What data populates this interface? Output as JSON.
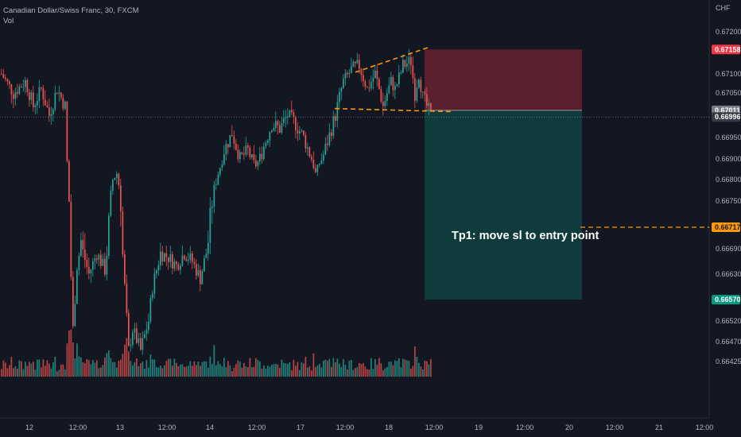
{
  "header": {
    "symbol_line": "Canadian Dollar/Swiss Franc, 30, FXCM",
    "indicator": "Vol"
  },
  "note": "Tp1: move sl to entry point",
  "chart_data": {
    "type": "candlestick",
    "title": "Canadian Dollar/Swiss Franc, 30, FXCM",
    "currency_label": "CHF",
    "y_axis_side": "right",
    "ylim": [
      0.664,
      0.6724
    ],
    "y_ticks": [
      "0.67200",
      "0.67100",
      "0.67050",
      "0.66950",
      "0.66900",
      "0.66800",
      "0.66750",
      "0.66690",
      "0.66630",
      "0.66520",
      "0.66470",
      "0.66425"
    ],
    "x_ticks": [
      "12",
      "12:00",
      "13",
      "12:00",
      "14",
      "12:00",
      "17",
      "12:00",
      "18",
      "12:00",
      "19",
      "12:00",
      "20",
      "12:00",
      "21",
      "12:00"
    ],
    "price_badges": [
      {
        "label": "0.67158",
        "role": "stop-loss",
        "color": "#f23645"
      },
      {
        "label": "0.67011",
        "role": "entry",
        "color": "#787b86"
      },
      {
        "label": "0.66996",
        "role": "last-price",
        "color": "#363a45"
      },
      {
        "label": "0.66717",
        "role": "tp1",
        "color": "#ff9800"
      },
      {
        "label": "0.66570",
        "role": "take-profit",
        "color": "#089981"
      }
    ],
    "colors": {
      "up": "#26a69a",
      "down": "#ef5350",
      "background": "#131722",
      "annotation": "#ff9800"
    },
    "price_path": [
      [
        0,
        0.671
      ],
      [
        3,
        0.6705
      ],
      [
        6,
        0.6708
      ],
      [
        8,
        0.6702
      ],
      [
        10,
        0.6706
      ],
      [
        12,
        0.67
      ],
      [
        14,
        0.6706
      ],
      [
        16,
        0.6702
      ],
      [
        17,
        0.6675
      ],
      [
        18,
        0.665
      ],
      [
        19,
        0.6665
      ],
      [
        20,
        0.667
      ],
      [
        22,
        0.6663
      ],
      [
        24,
        0.6668
      ],
      [
        26,
        0.6664
      ],
      [
        27,
        0.6672
      ],
      [
        28,
        0.668
      ],
      [
        29,
        0.6683
      ],
      [
        30,
        0.6675
      ],
      [
        31,
        0.666
      ],
      [
        32,
        0.6645
      ],
      [
        33,
        0.665
      ],
      [
        35,
        0.6645
      ],
      [
        37,
        0.6652
      ],
      [
        38,
        0.666
      ],
      [
        40,
        0.6668
      ],
      [
        42,
        0.6667
      ],
      [
        44,
        0.6665
      ],
      [
        46,
        0.6668
      ],
      [
        48,
        0.6666
      ],
      [
        50,
        0.6662
      ],
      [
        52,
        0.667
      ],
      [
        54,
        0.668
      ],
      [
        56,
        0.6692
      ],
      [
        58,
        0.6696
      ],
      [
        60,
        0.669
      ],
      [
        62,
        0.6692
      ],
      [
        64,
        0.6687
      ],
      [
        66,
        0.6693
      ],
      [
        68,
        0.6698
      ],
      [
        70,
        0.6697
      ],
      [
        72,
        0.67
      ],
      [
        74,
        0.6698
      ],
      [
        76,
        0.6695
      ],
      [
        78,
        0.669
      ],
      [
        79,
        0.6683
      ],
      [
        80,
        0.6688
      ],
      [
        82,
        0.6694
      ],
      [
        84,
        0.67
      ],
      [
        86,
        0.6708
      ],
      [
        88,
        0.6711
      ],
      [
        90,
        0.6712
      ],
      [
        92,
        0.6706
      ],
      [
        94,
        0.671
      ],
      [
        96,
        0.6702
      ],
      [
        98,
        0.6708
      ],
      [
        99,
        0.6706
      ],
      [
        101,
        0.6712
      ],
      [
        103,
        0.6713
      ],
      [
        104,
        0.6705
      ],
      [
        105,
        0.671
      ],
      [
        106,
        0.6704
      ],
      [
        108,
        0.67
      ]
    ],
    "trendline_upper": [
      [
        86,
        0.67104
      ],
      [
        110,
        0.67163
      ]
    ],
    "support_line": [
      [
        82,
        0.67015
      ],
      [
        110,
        0.67008
      ]
    ],
    "position": {
      "type": "short",
      "entry": 0.67011,
      "stop": 0.67158,
      "target": 0.6657,
      "tp1": 0.66717
    }
  }
}
